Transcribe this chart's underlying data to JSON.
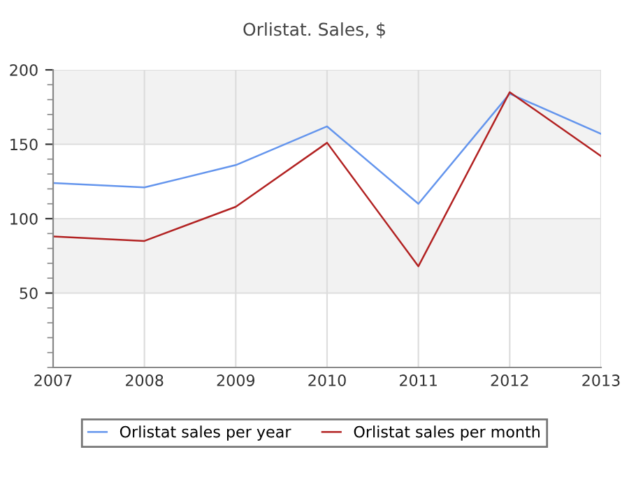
{
  "chart_data": {
    "type": "line",
    "title": "Orlistat. Sales, $",
    "x": [
      2007,
      2008,
      2009,
      2010,
      2011,
      2012,
      2013
    ],
    "series": [
      {
        "name": "Orlistat sales per year",
        "color": "#6495ed",
        "values": [
          124,
          121,
          136,
          162,
          110,
          184,
          157
        ]
      },
      {
        "name": "Orlistat sales per month",
        "color": "#b22222",
        "values": [
          88,
          85,
          108,
          151,
          68,
          185,
          142
        ]
      }
    ],
    "xlim": [
      2007,
      2013
    ],
    "xticks": [
      2007,
      2008,
      2009,
      2010,
      2011,
      2012,
      2013
    ],
    "ylim": [
      0,
      200
    ],
    "yticks": [
      50,
      100,
      150,
      200
    ],
    "grid": true,
    "legend": "bottom",
    "marker": "none",
    "line_style": "solid"
  }
}
